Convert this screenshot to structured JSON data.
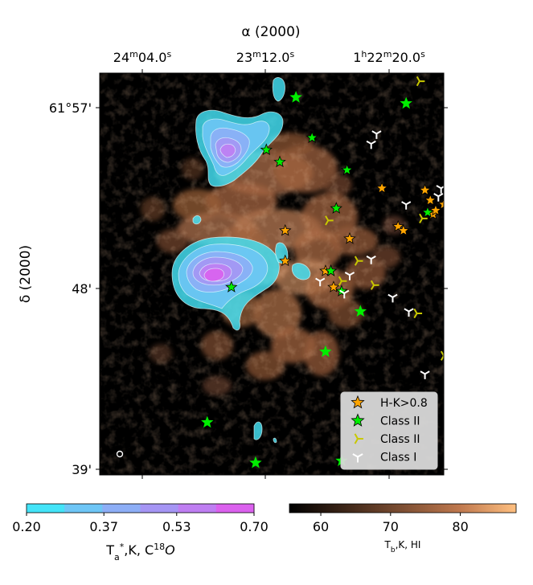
{
  "chart_data": {
    "type": "scatter",
    "title": "",
    "xlabel": "α (2000)",
    "ylabel": "δ (2000)",
    "x_ticks": [
      {
        "m": "24",
        "s": "04.0",
        "h": ""
      },
      {
        "m": "23",
        "s": "12.0",
        "h": ""
      },
      {
        "m": "22",
        "s": "20.0",
        "h": "1"
      }
    ],
    "y_ticks": [
      {
        "deg": "61°",
        "min": "57'"
      },
      {
        "deg": "",
        "min": "48'"
      },
      {
        "deg": "",
        "min": "39'"
      }
    ],
    "xlim_s": [
      100,
      -28
    ],
    "ylim_arcmin": [
      38.9,
      58.8
    ],
    "background_map": {
      "label": "T_b,K, HI",
      "colormap": "copper",
      "range": [
        55.5,
        88
      ],
      "ticks": [
        "60",
        "70",
        "80"
      ]
    },
    "contour_map": {
      "label": "T_a*,K, C18O",
      "range": [
        0.2,
        0.7
      ],
      "ticks": [
        "0.20",
        "0.37",
        "0.53",
        "0.70"
      ],
      "levels": [
        0.2,
        0.283,
        0.367,
        0.45,
        0.533,
        0.617,
        0.7
      ],
      "colors": [
        "#44e4f8",
        "#6ec6f6",
        "#8daef6",
        "#a595f4",
        "#bf7ef2",
        "#db61ee"
      ]
    },
    "legend": {
      "position": "lower-right",
      "entries": [
        {
          "label": "H-K>0.8",
          "marker": "star",
          "color": "#ffa500"
        },
        {
          "label": "Class II",
          "marker": "star",
          "color": "#00ee00"
        },
        {
          "label": "Class II",
          "marker": "tri",
          "color": "#c8c800"
        },
        {
          "label": "Class I",
          "marker": "tri",
          "color": "#ffffff"
        }
      ]
    },
    "series": [
      {
        "name": "H-K>0.8",
        "marker": "star",
        "color": "#ffa500",
        "points": [
          {
            "x": 31,
            "y": 51.0
          },
          {
            "x": 31,
            "y": 49.5
          },
          {
            "x": 16,
            "y": 49.0
          },
          {
            "x": 14,
            "y": 49.0
          },
          {
            "x": 13,
            "y": 48.2
          },
          {
            "x": 7,
            "y": 50.6
          },
          {
            "x": -5,
            "y": 53.1
          },
          {
            "x": -11,
            "y": 51.2
          },
          {
            "x": -13,
            "y": 51.0
          },
          {
            "x": -21,
            "y": 53.0
          },
          {
            "x": -23,
            "y": 52.5
          },
          {
            "x": -24,
            "y": 51.8
          },
          {
            "x": -25,
            "y": 52.0
          },
          {
            "x": -28,
            "y": 52.3
          },
          {
            "x": -32,
            "y": 52.9
          },
          {
            "x": -33,
            "y": 53.8
          },
          {
            "x": -35,
            "y": 49.4
          },
          {
            "x": -44,
            "y": 51.3
          },
          {
            "x": -45,
            "y": 51.6
          },
          {
            "x": -48,
            "y": 50.9
          },
          {
            "x": -58,
            "y": 50.9
          },
          {
            "x": -63,
            "y": 51.0
          }
        ]
      },
      {
        "name": "Class II",
        "marker": "star",
        "color": "#00ee00",
        "points": [
          {
            "x": 27,
            "y": 57.6
          },
          {
            "x": 21,
            "y": 55.6
          },
          {
            "x": 38,
            "y": 55.0
          },
          {
            "x": 33,
            "y": 54.4
          },
          {
            "x": -14,
            "y": 57.3
          },
          {
            "x": -31,
            "y": 56.9
          },
          {
            "x": -52,
            "y": 57.0
          },
          {
            "x": 8,
            "y": 54.0
          },
          {
            "x": -35,
            "y": 54.4
          },
          {
            "x": 12,
            "y": 52.1
          },
          {
            "x": -22,
            "y": 51.9
          },
          {
            "x": 14,
            "y": 49.0
          },
          {
            "x": 10,
            "y": 48.0
          },
          {
            "x": 3,
            "y": 47.0
          },
          {
            "x": 51,
            "y": 48.2
          },
          {
            "x": 16,
            "y": 45.0
          },
          {
            "x": 42,
            "y": 39.5
          },
          {
            "x": 10,
            "y": 39.6
          },
          {
            "x": 60,
            "y": 41.5
          }
        ]
      },
      {
        "name": "Class II",
        "marker": "tri",
        "color": "#c8c800",
        "points": [
          {
            "x": -19,
            "y": 58.4
          },
          {
            "x": 15,
            "y": 51.5
          },
          {
            "x": -20,
            "y": 51.6
          },
          {
            "x": 4,
            "y": 49.5
          },
          {
            "x": 10,
            "y": 48.5
          },
          {
            "x": -2,
            "y": 48.3
          },
          {
            "x": -18,
            "y": 46.9
          },
          {
            "x": -28,
            "y": 44.8
          },
          {
            "x": -45,
            "y": 51.1
          }
        ]
      },
      {
        "name": "Class I",
        "marker": "tri",
        "color": "#ffffff",
        "points": [
          {
            "x": -3,
            "y": 55.8
          },
          {
            "x": -1,
            "y": 55.3
          },
          {
            "x": -27,
            "y": 53.1
          },
          {
            "x": -26,
            "y": 52.7
          },
          {
            "x": -14,
            "y": 52.3
          },
          {
            "x": -1,
            "y": 49.6
          },
          {
            "x": 7,
            "y": 48.8
          },
          {
            "x": 18,
            "y": 48.5
          },
          {
            "x": 9,
            "y": 47.9
          },
          {
            "x": -9,
            "y": 47.7
          },
          {
            "x": -15,
            "y": 47.0
          },
          {
            "x": -21,
            "y": 43.9
          },
          {
            "x": -75,
            "y": 54.0
          }
        ]
      }
    ]
  }
}
